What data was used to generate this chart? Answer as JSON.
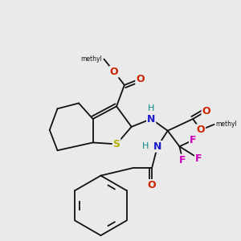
{
  "bg": "#eaeaea",
  "bc": "#111111",
  "bw": 1.3,
  "dbo": 0.01,
  "figsize": [
    3.0,
    3.0
  ],
  "dpi": 100,
  "colors": {
    "S": "#b8b000",
    "N": "#1a1acc",
    "H": "#008888",
    "O": "#cc2200",
    "F": "#cc00bb",
    "C": "#111111"
  }
}
